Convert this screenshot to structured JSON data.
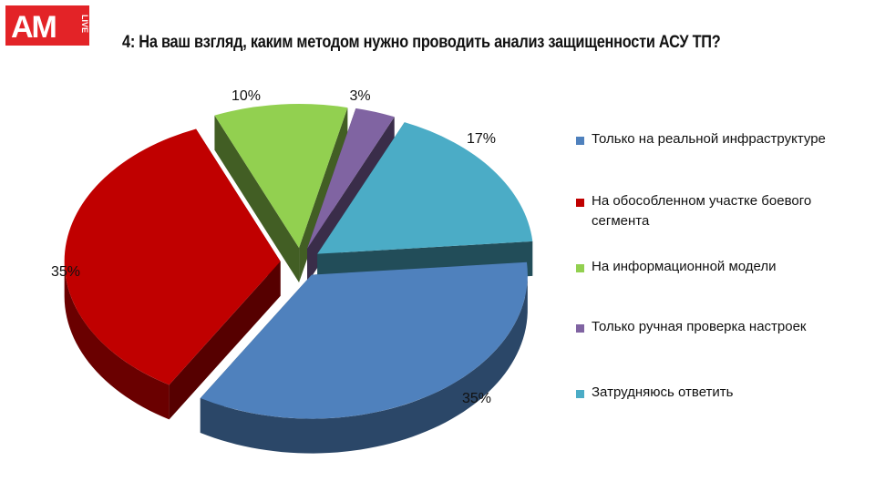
{
  "logo": {
    "text": "AM",
    "sub": "LIVE",
    "color": "#e32327"
  },
  "title": "4: На ваш взгляд, каким методом нужно проводить анализ защищенности АСУ ТП?",
  "chart_data": {
    "type": "pie",
    "title": "4: На ваш взгляд, каким методом нужно проводить анализ защищенности АСУ ТП?",
    "legend_position": "right",
    "slices": [
      {
        "label": "Только на реальной инфраструктуре",
        "value": 35,
        "display": "35%",
        "color": "#4f81bd"
      },
      {
        "label": "На обособленном участке боевого сегмента",
        "value": 35,
        "display": "35%",
        "color": "#c00000"
      },
      {
        "label": "На информационной модели",
        "value": 10,
        "display": "10%",
        "color": "#92d050"
      },
      {
        "label": "Только ручная проверка настроек",
        "value": 3,
        "display": "3%",
        "color": "#8064a2"
      },
      {
        "label": "Затрудняюсь ответить",
        "value": 17,
        "display": "17%",
        "color": "#4bacc6"
      }
    ]
  }
}
